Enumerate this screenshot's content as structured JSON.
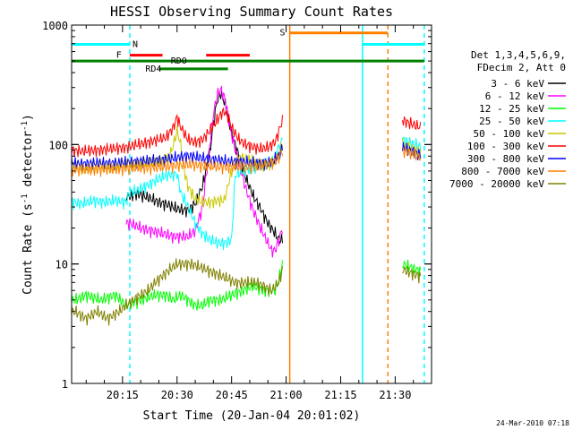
{
  "chart_data": {
    "type": "line",
    "title": "HESSI Observing Summary Count Rates",
    "xlabel": "Start Time (20-Jan-04 20:01:02)",
    "ylabel_main": "Count Rate (s",
    "ylabel_sup1": "-1",
    "ylabel_mid": " detector",
    "ylabel_sup2": "-1",
    "ylabel_end": ")",
    "xlim": [
      1,
      100
    ],
    "ylim": [
      1,
      1000
    ],
    "yscale": "log",
    "x_unit": "minutes since 20:00",
    "x_ticks": [
      {
        "v": 15,
        "label": "20:15"
      },
      {
        "v": 30,
        "label": "20:30"
      },
      {
        "v": 45,
        "label": "20:45"
      },
      {
        "v": 60,
        "label": "21:00"
      },
      {
        "v": 75,
        "label": "21:15"
      },
      {
        "v": 90,
        "label": "21:30"
      }
    ],
    "y_ticks": [
      {
        "v": 1,
        "label": "1"
      },
      {
        "v": 10,
        "label": "10"
      },
      {
        "v": 100,
        "label": "100"
      },
      {
        "v": 1000,
        "label": "1000"
      }
    ],
    "legend_header": [
      "Det 1,3,4,5,6,9,",
      "FDecim 2, Att 0"
    ],
    "legend_position": "right",
    "series": [
      {
        "name": "3 - 6 keV",
        "color": "#000000",
        "points": [
          [
            17,
            37
          ],
          [
            19,
            39
          ],
          [
            22,
            36
          ],
          [
            25,
            33
          ],
          [
            28,
            31
          ],
          [
            30,
            29
          ],
          [
            33,
            28
          ],
          [
            35,
            32
          ],
          [
            37,
            45
          ],
          [
            39,
            85
          ],
          [
            40,
            150
          ],
          [
            41,
            230
          ],
          [
            42,
            270
          ],
          [
            43,
            230
          ],
          [
            44,
            170
          ],
          [
            45,
            125
          ],
          [
            47,
            80
          ],
          [
            49,
            52
          ],
          [
            51,
            37
          ],
          [
            53,
            29
          ],
          [
            55,
            22
          ],
          [
            57,
            18
          ],
          [
            58,
            16
          ]
        ],
        "segments": [
          [
            16,
            59
          ]
        ]
      },
      {
        "name": "6 - 12 keV",
        "color": "#ff00ff",
        "points": [
          [
            17,
            22
          ],
          [
            20,
            20
          ],
          [
            23,
            19
          ],
          [
            26,
            18
          ],
          [
            29,
            17
          ],
          [
            31,
            17
          ],
          [
            33,
            17
          ],
          [
            35,
            19
          ],
          [
            37,
            30
          ],
          [
            38,
            55
          ],
          [
            39,
            100
          ],
          [
            40,
            180
          ],
          [
            41,
            260
          ],
          [
            42,
            290
          ],
          [
            43,
            250
          ],
          [
            44,
            180
          ],
          [
            45,
            120
          ],
          [
            47,
            70
          ],
          [
            49,
            42
          ],
          [
            51,
            28
          ],
          [
            53,
            20
          ],
          [
            55,
            15
          ],
          [
            56,
            13
          ],
          [
            57,
            13
          ],
          [
            58,
            16
          ],
          [
            59,
            20
          ]
        ],
        "segments": [
          [
            16,
            59
          ]
        ]
      },
      {
        "name": "12 - 25 keV",
        "color": "#00ff00",
        "points": [
          [
            2,
            5
          ],
          [
            5,
            5.5
          ],
          [
            9,
            5
          ],
          [
            13,
            5.5
          ],
          [
            16,
            4.5
          ],
          [
            20,
            5
          ],
          [
            24,
            5.5
          ],
          [
            27,
            5.5
          ],
          [
            29,
            5
          ],
          [
            31,
            5.5
          ],
          [
            33,
            5
          ],
          [
            35,
            4.5
          ],
          [
            37,
            4.5
          ],
          [
            39,
            5
          ],
          [
            42,
            5
          ],
          [
            45,
            5.5
          ],
          [
            48,
            6
          ],
          [
            51,
            6.5
          ],
          [
            54,
            6
          ],
          [
            57,
            6
          ],
          [
            58,
            7.5
          ],
          [
            59,
            10
          ]
        ],
        "segments": [
          [
            1,
            59
          ],
          [
            92,
            97
          ]
        ]
      },
      {
        "name": "25 - 50 keV",
        "color": "#00ffff",
        "points": [
          [
            1,
            33
          ],
          [
            4,
            32
          ],
          [
            7,
            34
          ],
          [
            10,
            33
          ],
          [
            13,
            34
          ],
          [
            16,
            33
          ],
          [
            17,
            40
          ],
          [
            19,
            41
          ],
          [
            22,
            46
          ],
          [
            25,
            52
          ],
          [
            28,
            56
          ],
          [
            30,
            57
          ],
          [
            31,
            40
          ],
          [
            33,
            30
          ],
          [
            35,
            22
          ],
          [
            37,
            18
          ],
          [
            39,
            16
          ],
          [
            41,
            15
          ],
          [
            43,
            15
          ],
          [
            45,
            16
          ],
          [
            46,
            55
          ],
          [
            48,
            60
          ],
          [
            50,
            63
          ],
          [
            52,
            66
          ],
          [
            54,
            68
          ],
          [
            56,
            70
          ],
          [
            57,
            80
          ],
          [
            58,
            95
          ],
          [
            59,
            110
          ]
        ],
        "segments": [
          [
            1,
            59
          ],
          [
            92,
            97
          ]
        ]
      },
      {
        "name": "50 - 100 keV",
        "color": "#c8c800",
        "points": [
          [
            1,
            65
          ],
          [
            4,
            64
          ],
          [
            8,
            65
          ],
          [
            12,
            66
          ],
          [
            16,
            68
          ],
          [
            19,
            70
          ],
          [
            22,
            70
          ],
          [
            24,
            72
          ],
          [
            26,
            75
          ],
          [
            28,
            80
          ],
          [
            29,
            100
          ],
          [
            30,
            130
          ],
          [
            31,
            100
          ],
          [
            32,
            60
          ],
          [
            33,
            45
          ],
          [
            35,
            35
          ],
          [
            37,
            33
          ],
          [
            39,
            33
          ],
          [
            41,
            34
          ],
          [
            43,
            34
          ],
          [
            45,
            60
          ],
          [
            47,
            78
          ],
          [
            49,
            76
          ],
          [
            51,
            72
          ],
          [
            53,
            68
          ],
          [
            55,
            68
          ],
          [
            57,
            72
          ],
          [
            58,
            85
          ],
          [
            59,
            100
          ]
        ],
        "segments": [
          [
            1,
            59
          ],
          [
            92,
            97
          ]
        ]
      },
      {
        "name": "100 - 300 keV",
        "color": "#ff0000",
        "points": [
          [
            1,
            90
          ],
          [
            4,
            88
          ],
          [
            8,
            90
          ],
          [
            12,
            92
          ],
          [
            16,
            95
          ],
          [
            19,
            100
          ],
          [
            22,
            105
          ],
          [
            25,
            110
          ],
          [
            27,
            115
          ],
          [
            29,
            140
          ],
          [
            30,
            170
          ],
          [
            31,
            140
          ],
          [
            33,
            110
          ],
          [
            35,
            105
          ],
          [
            37,
            110
          ],
          [
            39,
            130
          ],
          [
            41,
            160
          ],
          [
            42,
            180
          ],
          [
            43,
            190
          ],
          [
            44,
            175
          ],
          [
            45,
            140
          ],
          [
            47,
            110
          ],
          [
            49,
            100
          ],
          [
            51,
            95
          ],
          [
            53,
            92
          ],
          [
            55,
            95
          ],
          [
            57,
            105
          ],
          [
            58,
            130
          ],
          [
            59,
            160
          ]
        ],
        "segments": [
          [
            1,
            59
          ],
          [
            92,
            97
          ]
        ]
      },
      {
        "name": "300 - 800 keV",
        "color": "#0000ff",
        "points": [
          [
            1,
            70
          ],
          [
            4,
            69
          ],
          [
            8,
            70
          ],
          [
            12,
            70
          ],
          [
            16,
            71
          ],
          [
            19,
            72
          ],
          [
            22,
            73
          ],
          [
            25,
            74
          ],
          [
            28,
            76
          ],
          [
            30,
            78
          ],
          [
            32,
            80
          ],
          [
            34,
            80
          ],
          [
            36,
            78
          ],
          [
            38,
            76
          ],
          [
            40,
            75
          ],
          [
            42,
            74
          ],
          [
            44,
            72
          ],
          [
            46,
            72
          ],
          [
            48,
            72
          ],
          [
            50,
            71
          ],
          [
            52,
            70
          ],
          [
            54,
            70
          ],
          [
            56,
            72
          ],
          [
            58,
            80
          ],
          [
            59,
            95
          ]
        ],
        "segments": [
          [
            1,
            59
          ],
          [
            92,
            97
          ]
        ]
      },
      {
        "name": "800 - 7000 keV",
        "color": "#ff8000",
        "points": [
          [
            1,
            62
          ],
          [
            4,
            61
          ],
          [
            8,
            62
          ],
          [
            12,
            62
          ],
          [
            16,
            63
          ],
          [
            19,
            64
          ],
          [
            22,
            64
          ],
          [
            25,
            65
          ],
          [
            28,
            66
          ],
          [
            30,
            67
          ],
          [
            32,
            68
          ],
          [
            34,
            68
          ],
          [
            36,
            67
          ],
          [
            38,
            66
          ],
          [
            40,
            66
          ],
          [
            42,
            65
          ],
          [
            44,
            65
          ],
          [
            46,
            65
          ],
          [
            48,
            65
          ],
          [
            50,
            65
          ],
          [
            52,
            66
          ],
          [
            54,
            67
          ],
          [
            56,
            70
          ],
          [
            58,
            78
          ],
          [
            59,
            90
          ]
        ],
        "segments": [
          [
            1,
            59
          ],
          [
            92,
            97
          ]
        ]
      },
      {
        "name": "7000 - 20000 keV",
        "color": "#808000",
        "points": [
          [
            2,
            4
          ],
          [
            5,
            3.5
          ],
          [
            8,
            4
          ],
          [
            11,
            3.5
          ],
          [
            14,
            4
          ],
          [
            16,
            4.5
          ],
          [
            18,
            5
          ],
          [
            20,
            5.5
          ],
          [
            22,
            6
          ],
          [
            24,
            7
          ],
          [
            26,
            8
          ],
          [
            28,
            9
          ],
          [
            30,
            10
          ],
          [
            32,
            10
          ],
          [
            34,
            10
          ],
          [
            36,
            9.5
          ],
          [
            38,
            9
          ],
          [
            40,
            8.5
          ],
          [
            42,
            8
          ],
          [
            44,
            7.5
          ],
          [
            46,
            7
          ],
          [
            48,
            7
          ],
          [
            50,
            7
          ],
          [
            52,
            7
          ],
          [
            54,
            6.5
          ],
          [
            56,
            6
          ],
          [
            58,
            7
          ],
          [
            59,
            9
          ]
        ],
        "segments": [
          [
            1,
            59
          ],
          [
            92,
            97
          ]
        ]
      }
    ],
    "flag_bars": [
      {
        "label": "N",
        "color": "#00ffff",
        "y": 690,
        "label_at": 18.5,
        "segments": [
          [
            1,
            17
          ],
          [
            81,
            98
          ]
        ]
      },
      {
        "label": "S",
        "color": "#ff8000",
        "y": 860,
        "label_at": 59,
        "segments": [
          [
            61,
            88
          ]
        ]
      },
      {
        "label": "F",
        "color": "#ff0000",
        "y": 560,
        "label_at": 14,
        "segments": [
          [
            17,
            26
          ],
          [
            38,
            50
          ]
        ]
      },
      {
        "label": "RDO",
        "color": "#008000",
        "y": 500,
        "label_at": 30.5,
        "segments": [
          [
            1,
            98
          ]
        ]
      },
      {
        "label": "RD4",
        "color": "#008000",
        "y": 430,
        "label_at": 23.5,
        "segments": [
          [
            25,
            44
          ]
        ]
      }
    ],
    "vertical_lines": [
      {
        "x": 17,
        "color": "#00ffff",
        "dashed": true
      },
      {
        "x": 61,
        "color": "#ff8000",
        "dashed": false
      },
      {
        "x": 81,
        "color": "#00ffff",
        "dashed": false
      },
      {
        "x": 88,
        "color": "#ff8000",
        "dashed": true
      },
      {
        "x": 98,
        "color": "#00ffff",
        "dashed": true
      }
    ],
    "footer": "24-Mar-2010 07:18"
  }
}
